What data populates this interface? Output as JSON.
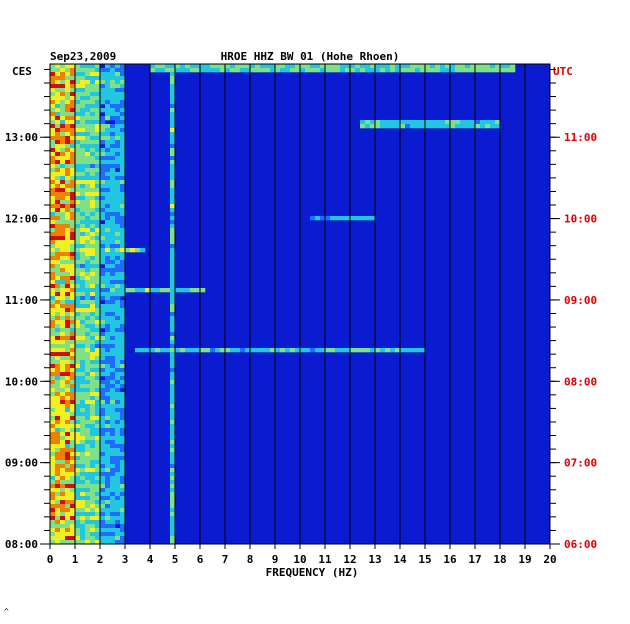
{
  "chart_data": {
    "type": "heatmap",
    "header": {
      "date": "Sep23,2009",
      "station": "HROE HHZ BW 01 (Hohe Rhoen)",
      "left_zone": "CES",
      "right_zone": "UTC"
    },
    "xlabel": "FREQUENCY (HZ)",
    "xlim": [
      0,
      20
    ],
    "x_ticks": [
      "0",
      "1",
      "2",
      "3",
      "4",
      "5",
      "6",
      "7",
      "8",
      "9",
      "10",
      "11",
      "12",
      "13",
      "14",
      "15",
      "16",
      "17",
      "18",
      "19",
      "20"
    ],
    "ylim_hours_ces": [
      8.0,
      13.9
    ],
    "y_ticks_left": [
      {
        "t": 13,
        "label": "13:00"
      },
      {
        "t": 12,
        "label": "12:00"
      },
      {
        "t": 11,
        "label": "11:00"
      },
      {
        "t": 10,
        "label": "10:00"
      },
      {
        "t": 9,
        "label": "09:00"
      },
      {
        "t": 8,
        "label": "08:00"
      }
    ],
    "y_ticks_right": [
      {
        "t": 13,
        "label": "11:00"
      },
      {
        "t": 12,
        "label": "10:00"
      },
      {
        "t": 11,
        "label": "09:00"
      },
      {
        "t": 10,
        "label": "08:00"
      },
      {
        "t": 9,
        "label": "07:00"
      },
      {
        "t": 8,
        "label": "06:00"
      }
    ],
    "colors": {
      "background": "#0a1bd0",
      "grid": "#000000",
      "utc_labels": "#e00000",
      "scale": [
        "#0a1bd0",
        "#1f6cff",
        "#22c6e0",
        "#7fe08a",
        "#f0f020",
        "#f08000",
        "#d01010"
      ]
    },
    "energy_bands_hz": [
      {
        "from": 0.1,
        "to": 0.9,
        "level": 0.85
      },
      {
        "from": 0.9,
        "to": 2.0,
        "level": 0.55
      },
      {
        "from": 2.0,
        "to": 3.0,
        "level": 0.35
      },
      {
        "from": 4.8,
        "to": 5.0,
        "level": 0.45
      }
    ],
    "events": [
      {
        "t": 13.85,
        "f_from": 4.0,
        "f_to": 18.5,
        "level": 0.45
      },
      {
        "t": 13.17,
        "f_from": 12.5,
        "f_to": 18.0,
        "level": 0.4
      },
      {
        "t": 11.13,
        "f_from": 2.5,
        "f_to": 6.2,
        "level": 0.5
      },
      {
        "t": 10.38,
        "f_from": 3.5,
        "f_to": 15.0,
        "level": 0.4
      },
      {
        "t": 11.6,
        "f_from": 0.1,
        "f_to": 3.8,
        "level": 0.55
      },
      {
        "t": 12.0,
        "f_from": 10.5,
        "f_to": 13.0,
        "level": 0.35
      }
    ],
    "footer_mark": "^"
  }
}
